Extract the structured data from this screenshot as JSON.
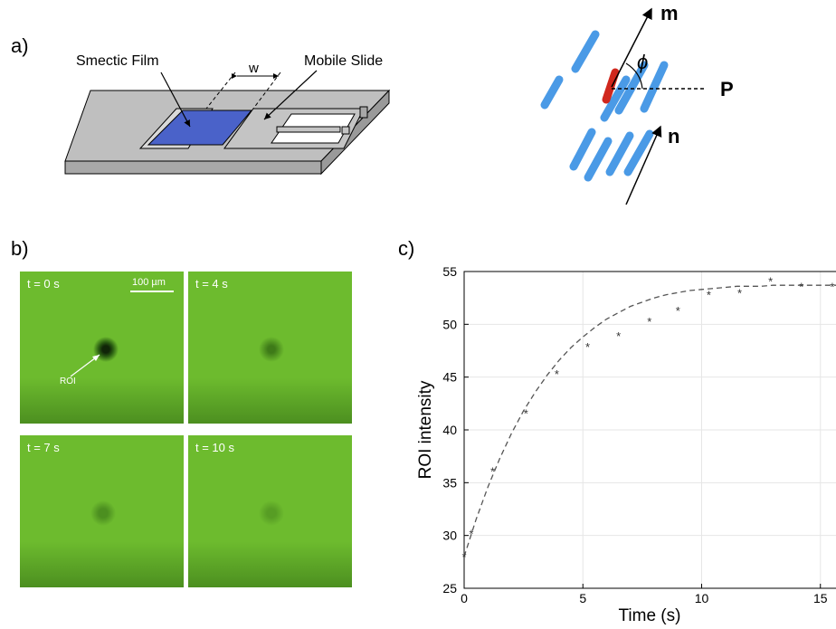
{
  "panels": {
    "a": "a)",
    "b": "b)",
    "c": "c)"
  },
  "schematic": {
    "smectic_film": "Smectic Film",
    "mobile_slide": "Mobile Slide",
    "width_label": "w",
    "film_color": "#4a62c9",
    "frame_color": "#bfbfbf"
  },
  "director": {
    "m_label": "m",
    "n_label": "n",
    "p_label": "P",
    "phi_label": "ϕ",
    "rod_color": "#4a9ae6",
    "highlight_color": "#d0271d"
  },
  "micrographs": {
    "scale_bar": "100 µm",
    "roi_label": "ROI",
    "background_color": "#6dbb2e",
    "frames": [
      {
        "time": "t = 0 s"
      },
      {
        "time": "t = 4 s"
      },
      {
        "time": "t = 7 s"
      },
      {
        "time": "t = 10 s"
      }
    ]
  },
  "chart_data": {
    "type": "scatter",
    "xlabel": "Time (s)",
    "ylabel": "ROI intensity",
    "xlim": [
      0,
      16
    ],
    "ylim": [
      25,
      55
    ],
    "xticks": [
      0,
      5,
      10,
      15
    ],
    "yticks": [
      25,
      30,
      35,
      40,
      45,
      50,
      55
    ],
    "grid": true,
    "marker": "asterisk",
    "series": [
      {
        "x": [
          0.0,
          0.3,
          1.2,
          2.6,
          3.9,
          5.2,
          6.5,
          7.8,
          9.0,
          10.3,
          11.6,
          12.9,
          14.2,
          15.5
        ],
        "y": [
          28.0,
          30.2,
          36.1,
          41.6,
          45.3,
          47.9,
          48.9,
          50.3,
          51.3,
          52.8,
          53.0,
          54.1,
          53.6,
          53.6
        ]
      }
    ],
    "fit": {
      "style": "dashed",
      "color": "#555555",
      "x": [
        0,
        0.5,
        1,
        1.5,
        2,
        2.5,
        3,
        3.5,
        4,
        4.5,
        5,
        5.5,
        6,
        6.5,
        7,
        7.5,
        8,
        8.5,
        9,
        9.5,
        10,
        10.5,
        11,
        11.5,
        12,
        12.5,
        13,
        13.5,
        14,
        14.5,
        15,
        15.5,
        16
      ],
      "y": [
        28.0,
        31.5,
        34.6,
        37.3,
        39.7,
        41.8,
        43.6,
        45.2,
        46.6,
        47.8,
        48.8,
        49.7,
        50.5,
        51.1,
        51.7,
        52.1,
        52.5,
        52.8,
        53.0,
        53.2,
        53.3,
        53.4,
        53.5,
        53.6,
        53.6,
        53.6,
        53.7,
        53.7,
        53.7,
        53.7,
        53.7,
        53.7,
        53.7
      ]
    }
  }
}
